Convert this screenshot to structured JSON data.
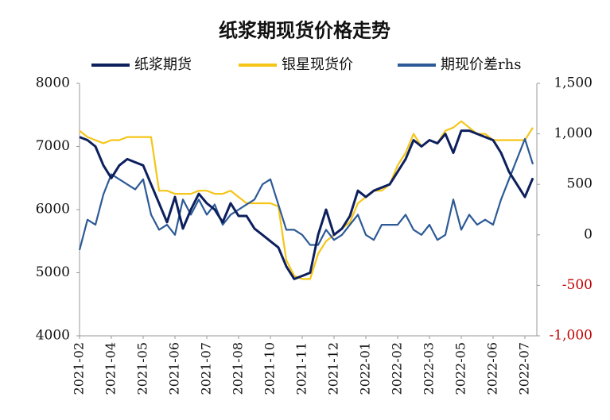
{
  "chart_data": {
    "type": "line",
    "title": "纸浆期现货价格走势",
    "categories": [
      "2021-02",
      null,
      null,
      null,
      "2021-04",
      null,
      null,
      null,
      "2021-05",
      null,
      null,
      null,
      "2021-06",
      null,
      null,
      null,
      "2021-07",
      null,
      null,
      null,
      "2021-08",
      null,
      null,
      null,
      "2021-10",
      null,
      null,
      null,
      "2021-11",
      null,
      null,
      null,
      "2021-12",
      null,
      null,
      null,
      "2022-01",
      null,
      null,
      null,
      "2022-02",
      null,
      null,
      null,
      "2022-03",
      null,
      null,
      null,
      "2022-05",
      null,
      null,
      null,
      "2022-06",
      null,
      null,
      null,
      "2022-07",
      null
    ],
    "series": [
      {
        "name": "纸浆期货",
        "color": "#0d1f5c",
        "values": [
          7150,
          7100,
          7000,
          6700,
          6500,
          6700,
          6800,
          6750,
          6700,
          6400,
          6100,
          5800,
          6200,
          5700,
          6000,
          6250,
          6100,
          6000,
          5800,
          6100,
          5900,
          5900,
          5700,
          5600,
          5500,
          5400,
          5100,
          4900,
          4950,
          5000,
          5600,
          6000,
          5600,
          5700,
          5900,
          6300,
          6200,
          6300,
          6350,
          6400,
          6600,
          6800,
          7100,
          7000,
          7100,
          7050,
          7200,
          6900,
          7250,
          7250,
          7200,
          7150,
          7100,
          6900,
          6600,
          6400,
          6200,
          6500
        ]
      },
      {
        "name": "银星现货价",
        "color": "#f5c518",
        "values": [
          7250,
          7150,
          7100,
          7050,
          7100,
          7100,
          7150,
          7150,
          7150,
          7150,
          6300,
          6300,
          6250,
          6250,
          6250,
          6300,
          6300,
          6250,
          6250,
          6300,
          6200,
          6100,
          6100,
          6100,
          6100,
          6050,
          5200,
          4950,
          4900,
          4900,
          5300,
          5500,
          5600,
          5700,
          5800,
          6100,
          6200,
          6300,
          6300,
          6400,
          6700,
          6900,
          7200,
          7000,
          7100,
          7050,
          7250,
          7300,
          7400,
          7300,
          7200,
          7200,
          7100,
          7100,
          7100,
          7100,
          7100,
          7300
        ]
      },
      {
        "name": "期现价差rhs",
        "color": "#2d5a96",
        "axis": "y2",
        "values": [
          -150,
          150,
          100,
          400,
          600,
          550,
          500,
          450,
          550,
          200,
          50,
          100,
          0,
          350,
          200,
          350,
          200,
          300,
          100,
          200,
          250,
          300,
          350,
          500,
          550,
          300,
          50,
          50,
          0,
          -100,
          -100,
          50,
          -50,
          0,
          100,
          200,
          0,
          -50,
          100,
          100,
          100,
          200,
          50,
          0,
          100,
          -50,
          0,
          350,
          50,
          200,
          100,
          150,
          100,
          350,
          550,
          750,
          950,
          700
        ]
      }
    ],
    "ylim": [
      4000,
      8000
    ],
    "yticks": [
      4000,
      5000,
      6000,
      7000,
      8000
    ],
    "y2lim": [
      -1000,
      1500
    ],
    "y2ticks": [
      {
        "value": -1000,
        "label": "-1,000"
      },
      -500,
      0,
      500,
      {
        "value": 1000,
        "label": "1,000"
      },
      {
        "value": 1500,
        "label": "1,500"
      }
    ],
    "negative_tick_color": "#c00000",
    "legend": "top"
  }
}
